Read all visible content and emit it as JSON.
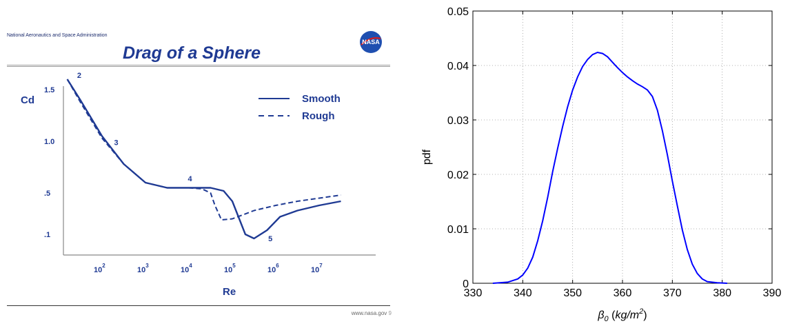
{
  "left": {
    "agency": "National Aeronautics and Space Administration",
    "title": "Drag of a Sphere",
    "logo_text": "NASA",
    "site": "www.nasa.gov",
    "page_mark": "9",
    "chart_data": {
      "type": "line",
      "ylabel": "Cd",
      "xlabel": "Re",
      "y_ticks": [
        ".1",
        ".5",
        "1.0",
        "1.5"
      ],
      "x_ticks": [
        {
          "base": "10",
          "exp": "2"
        },
        {
          "base": "10",
          "exp": "3"
        },
        {
          "base": "10",
          "exp": "4"
        },
        {
          "base": "10",
          "exp": "5"
        },
        {
          "base": "10",
          "exp": "6"
        },
        {
          "base": "10",
          "exp": "7"
        }
      ],
      "legend": [
        {
          "name": "Smooth",
          "style": "solid"
        },
        {
          "name": "Rough",
          "style": "dashed"
        }
      ],
      "annotations": [
        "2",
        "3",
        "4",
        "5"
      ],
      "color": "#1f3a93",
      "series": [
        {
          "name": "Smooth",
          "x": [
            1.2,
            1.5,
            2.0,
            2.5,
            3.0,
            3.5,
            4.0,
            4.5,
            4.8,
            5.0,
            5.3,
            5.5,
            5.8,
            6.1,
            6.5,
            7.0,
            7.5
          ],
          "y": [
            1.6,
            1.4,
            1.05,
            0.78,
            0.6,
            0.55,
            0.55,
            0.55,
            0.52,
            0.42,
            0.1,
            0.06,
            0.14,
            0.27,
            0.33,
            0.38,
            0.42
          ]
        },
        {
          "name": "Rough",
          "x": [
            1.2,
            1.5,
            2.0,
            2.5,
            3.0,
            3.5,
            4.0,
            4.3,
            4.5,
            4.6,
            4.75,
            5.0,
            5.5,
            6.0,
            6.5,
            7.0,
            7.5
          ],
          "y": [
            1.6,
            1.38,
            1.03,
            0.78,
            0.6,
            0.55,
            0.55,
            0.54,
            0.5,
            0.38,
            0.24,
            0.25,
            0.33,
            0.38,
            0.42,
            0.45,
            0.48
          ]
        }
      ]
    }
  },
  "right": {
    "chart_data": {
      "type": "line",
      "xlabel": "β0 (kg/m2)",
      "ylabel": "pdf",
      "xlim": [
        330,
        390
      ],
      "ylim": [
        0,
        0.05
      ],
      "x_ticks": [
        "330",
        "340",
        "350",
        "360",
        "370",
        "380",
        "390"
      ],
      "y_ticks": [
        "0",
        "0.01",
        "0.02",
        "0.03",
        "0.04",
        "0.05"
      ],
      "grid": true,
      "color": "#0000ff",
      "series": [
        {
          "x": [
            334,
            337,
            339,
            340,
            341,
            342,
            343,
            344,
            345,
            346,
            347,
            348,
            349,
            350,
            351,
            352,
            353,
            354,
            355,
            356,
            357,
            358,
            359,
            360,
            361,
            362,
            363,
            364,
            365,
            366,
            367,
            368,
            369,
            370,
            371,
            372,
            373,
            374,
            375,
            376,
            377,
            379,
            381
          ],
          "y": [
            0,
            0.0002,
            0.0008,
            0.0015,
            0.0028,
            0.0048,
            0.0078,
            0.0115,
            0.0158,
            0.0205,
            0.0248,
            0.0288,
            0.0324,
            0.0355,
            0.0379,
            0.0398,
            0.0411,
            0.042,
            0.0424,
            0.0422,
            0.0416,
            0.0406,
            0.0396,
            0.0387,
            0.0379,
            0.0372,
            0.0366,
            0.0361,
            0.0355,
            0.0343,
            0.0318,
            0.028,
            0.0236,
            0.0188,
            0.0142,
            0.0098,
            0.0062,
            0.0035,
            0.0018,
            0.0008,
            0.0003,
            0.0001,
            0
          ]
        }
      ]
    }
  }
}
